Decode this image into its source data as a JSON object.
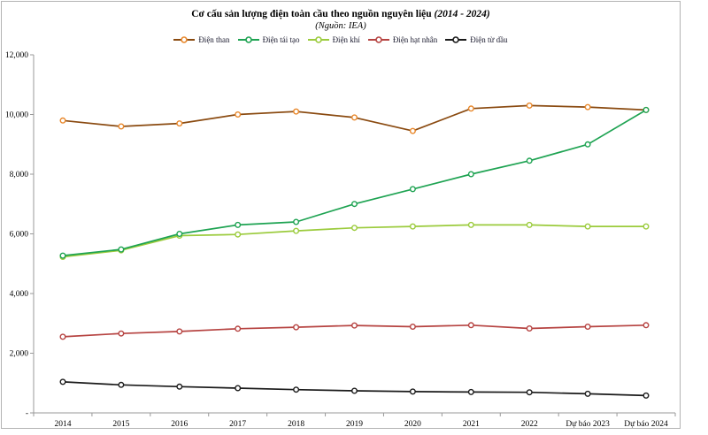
{
  "header": {
    "title_main": "Cơ cấu sản lượng điện toàn cầu theo nguồn nguyên liệu",
    "title_range": "(2014 - 2024)",
    "subtitle": "(Nguồn: IEA)"
  },
  "chart_data": {
    "type": "line",
    "title": "Cơ cấu sản lượng điện toàn cầu theo nguồn nguyên liệu (2014 - 2024)",
    "subtitle": "(Nguồn: IEA)",
    "legend_position": "top",
    "grid": false,
    "ylim": [
      0,
      12000
    ],
    "ytick_step": 2000,
    "zero_tick_label": "-",
    "categories": [
      "2014",
      "2015",
      "2016",
      "2017",
      "2018",
      "2019",
      "2020",
      "2021",
      "2022",
      "Dự báo 2023",
      "Dự báo 2024"
    ],
    "series": [
      {
        "name": "Điện than",
        "line_color": "#8a4a10",
        "marker_color": "#e8872a",
        "values": [
          9800,
          9600,
          9700,
          10000,
          10100,
          9900,
          9450,
          10200,
          10300,
          10250,
          10150
        ]
      },
      {
        "name": "Điện tái tạo",
        "line_color": "#1ea352",
        "marker_color": "#1ea352",
        "values": [
          5270,
          5480,
          6000,
          6300,
          6400,
          7000,
          7500,
          8000,
          8450,
          9000,
          10150
        ]
      },
      {
        "name": "Điện khí",
        "line_color": "#9bcb3c",
        "marker_color": "#9bcb3c",
        "values": [
          5230,
          5450,
          5940,
          5980,
          6100,
          6200,
          6250,
          6300,
          6300,
          6250,
          6250
        ]
      },
      {
        "name": "Điện hạt nhân",
        "line_color": "#b64341",
        "marker_color": "#b64341",
        "values": [
          2550,
          2660,
          2730,
          2820,
          2870,
          2930,
          2890,
          2940,
          2830,
          2890,
          2940
        ]
      },
      {
        "name": "Điện từ dầu",
        "line_color": "#1a1a1a",
        "marker_color": "#1a1a1a",
        "values": [
          1040,
          940,
          880,
          830,
          780,
          740,
          715,
          700,
          690,
          640,
          580
        ]
      }
    ],
    "axis_color": "#999999",
    "tick_label_color": "#000000"
  }
}
